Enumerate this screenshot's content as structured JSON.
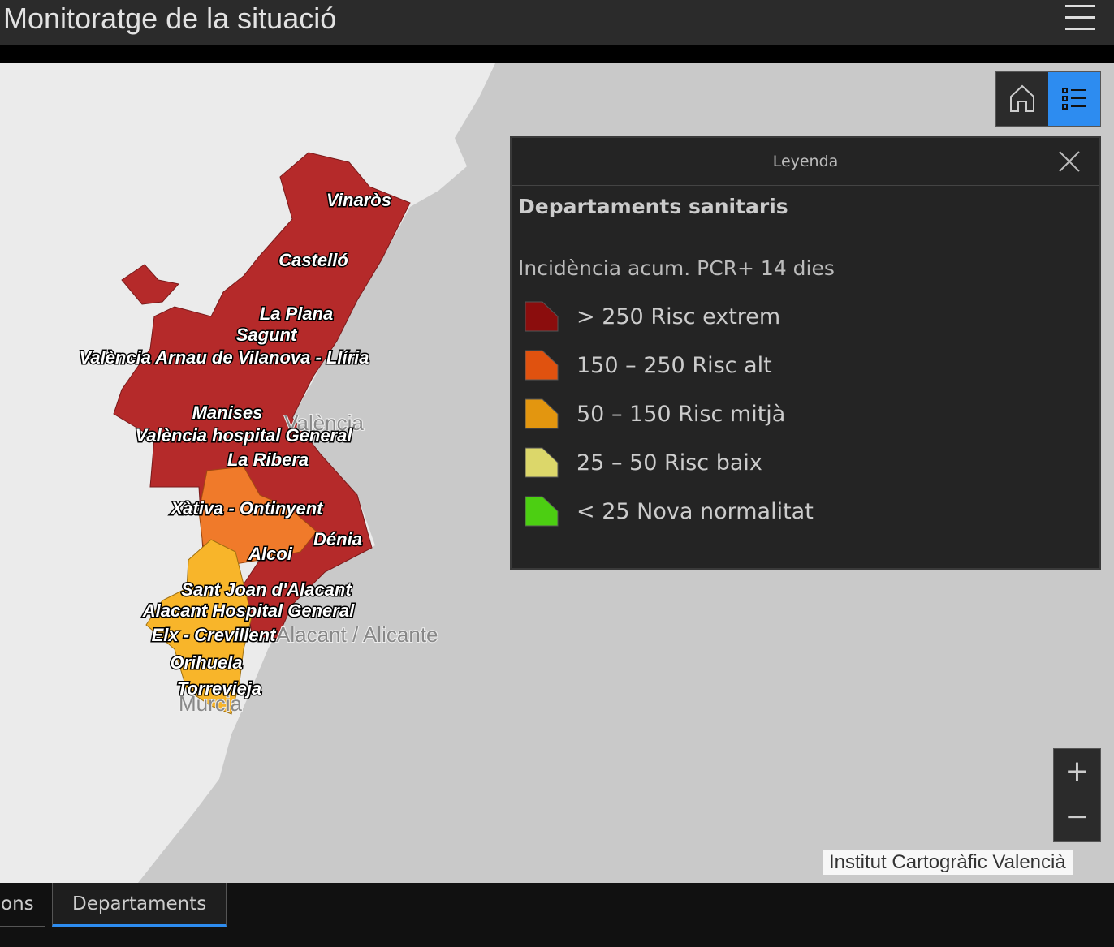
{
  "header": {
    "title": "Monitoratge de la situació"
  },
  "map": {
    "labels": [
      "Vinaròs",
      "Castelló",
      "La Plana",
      "Sagunt",
      "València Arnau de Vilanova - Llíria",
      "Manises",
      "València hospital General",
      "La Ribera",
      "Xàtiva - Ontinyent",
      "Dénia",
      "Alcoi",
      "Sant Joan d'Alacant",
      "Alacant Hospital General",
      "Elx - Crevillent",
      "Orihuela",
      "Torrevieja"
    ],
    "places": [
      "València",
      "Alacant / Alicante",
      "Murcia"
    ]
  },
  "legend": {
    "title": "Leyenda",
    "layer": "Departaments sanitaris",
    "field": "Incidència acum. PCR+ 14 dies",
    "items": [
      {
        "label": "> 250 Risc extrem",
        "color": "#8b0d0d"
      },
      {
        "label": "150 – 250 Risc alt",
        "color": "#e0520f"
      },
      {
        "label": "50 – 150 Risc mitjà",
        "color": "#e3960f"
      },
      {
        "label": "25 – 50 Risc baix",
        "color": "#dcd76a"
      },
      {
        "label": "< 25 Nova normalitat",
        "color": "#4ccf12"
      }
    ]
  },
  "zoom": {
    "in": "+",
    "out": "−"
  },
  "attribution": "Institut Cartogràfic Valencià",
  "tabs": [
    "ons",
    "Departaments"
  ]
}
